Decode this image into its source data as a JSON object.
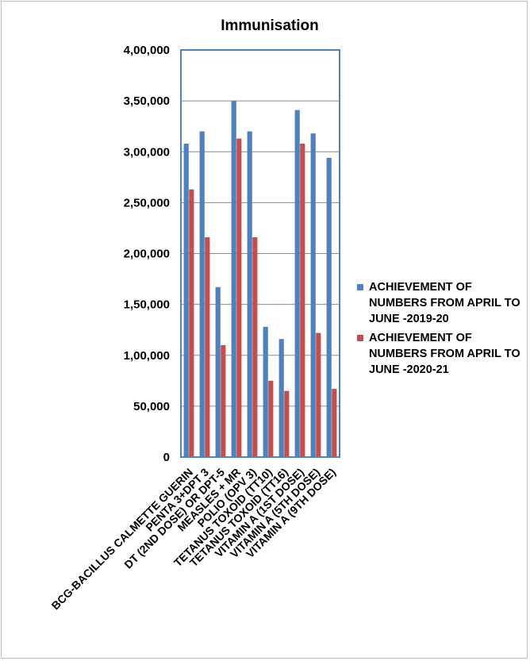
{
  "chart_data": {
    "type": "bar",
    "title": "Immunisation",
    "xlabel": "",
    "ylabel": "",
    "ylim": [
      0,
      400000
    ],
    "yticks": [
      "0",
      "50,000",
      "1,00,000",
      "1,50,000",
      "2,00,000",
      "2,50,000",
      "3,00,000",
      "3,50,000",
      "4,00,000"
    ],
    "categories": [
      "BCG-BACILLUS CALMETTE GUERIN",
      "PENTA 3+DPT 3",
      "DT (2ND DOSE) OR DPT-5",
      "MEASLES + MR",
      "POLIO (OPV 3)",
      "TETANUS TOXOID (TT10)",
      "TETANUS TOXOID (TT16)",
      "VITAMIN A (1ST DOSE)",
      "VITAMIN A (5TH DOSE)",
      "VITAMIN A (9TH DOSE)"
    ],
    "series": [
      {
        "name": "ACHIEVEMENT OF NUMBERS FROM APRIL TO JUNE -2019-20",
        "color": "#4f81bd",
        "values": [
          308000,
          320000,
          167000,
          350000,
          320000,
          128000,
          116000,
          341000,
          318000,
          294000
        ]
      },
      {
        "name": "ACHIEVEMENT OF NUMBERS FROM APRIL TO JUNE -2020-21",
        "color": "#c0504d",
        "values": [
          263000,
          216000,
          110000,
          313000,
          216000,
          75000,
          65000,
          308000,
          122000,
          67000
        ]
      }
    ],
    "grid": true,
    "legend_position": "right"
  }
}
